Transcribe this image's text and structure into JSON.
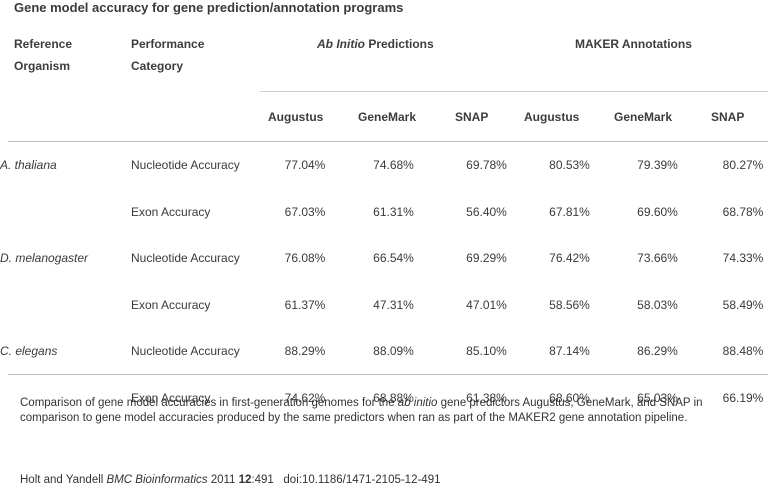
{
  "title": "Gene model accuracy for gene prediction/annotation programs",
  "header": {
    "col1_line1": "Reference",
    "col1_line2": "Organism",
    "col2_line1": "Performance",
    "col2_line2": "Category",
    "group1_italic": "Ab Initio",
    "group1_rest": " Predictions",
    "group2": "MAKER Annotations",
    "subcols": [
      "Augustus",
      "GeneMark",
      "SNAP",
      "Augustus",
      "GeneMark",
      "SNAP"
    ]
  },
  "rows": [
    {
      "organism": "A. thaliana",
      "category": "Nucleotide Accuracy",
      "values": [
        "77.04%",
        "74.68%",
        "69.78%",
        "80.53%",
        "79.39%",
        "80.27%"
      ]
    },
    {
      "organism": "",
      "category": "Exon Accuracy",
      "values": [
        "67.03%",
        "61.31%",
        "56.40%",
        "67.81%",
        "69.60%",
        "68.78%"
      ]
    },
    {
      "organism": "D. melanogaster",
      "category": "Nucleotide Accuracy",
      "values": [
        "76.08%",
        "66.54%",
        "69.29%",
        "76.42%",
        "73.66%",
        "74.33%"
      ]
    },
    {
      "organism": "",
      "category": "Exon Accuracy",
      "values": [
        "61.37%",
        "47.31%",
        "47.01%",
        "58.56%",
        "58.03%",
        "58.49%"
      ]
    },
    {
      "organism": "C. elegans",
      "category": "Nucleotide Accuracy",
      "values": [
        "88.29%",
        "88.09%",
        "85.10%",
        "87.14%",
        "86.29%",
        "88.48%"
      ]
    },
    {
      "organism": "",
      "category": "Exon Accuracy",
      "values": [
        "74.62%",
        "68.88%",
        "61.38%",
        "68.60%",
        "65.03%",
        "66.19%"
      ]
    }
  ],
  "caption": {
    "part1": "Comparison of gene model accuracies in first-generation genomes for the ",
    "italic": "ab initio",
    "part2": " gene predictors Augustus, GeneMark, and SNAP in comparison to gene model accuracies produced by the same predictors when ran as part of the MAKER2 gene annotation pipeline."
  },
  "citation": {
    "authors": "Holt and Yandell ",
    "journal": "BMC Bioinformatics",
    "year": " 2011 ",
    "volume": "12",
    "pages": ":491",
    "doi": "doi:10.1186/1471-2105-12-491"
  }
}
